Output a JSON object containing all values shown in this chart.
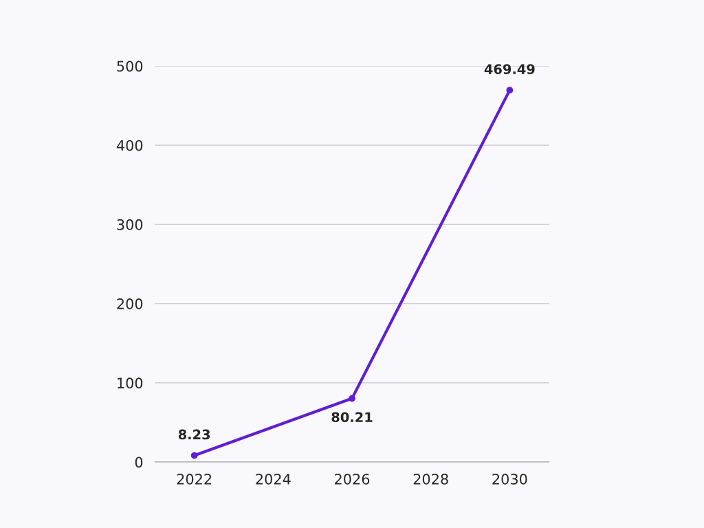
{
  "chart_data": {
    "type": "line",
    "x": [
      2022,
      2026,
      2030
    ],
    "series": [
      {
        "color": "#5f1fd1",
        "values": [
          8.23,
          80.21,
          469.49
        ]
      }
    ],
    "xlim": [
      2021,
      2031
    ],
    "xticks": [
      2022,
      2024,
      2026,
      2028,
      2030
    ],
    "ylim": [
      0,
      500
    ],
    "yticks": [
      0,
      100,
      200,
      300,
      400,
      500
    ],
    "grid": "y",
    "marker": "circle",
    "line_style": "solid",
    "data_labels": true
  }
}
